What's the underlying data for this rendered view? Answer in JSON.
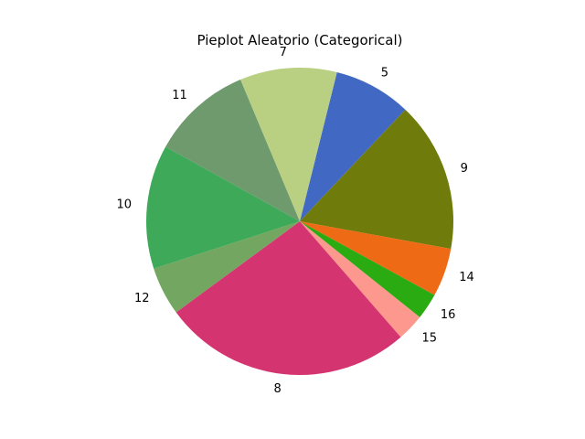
{
  "chart_data": {
    "type": "pie",
    "title": "Pieplot Aleatorio (Categorical)",
    "slices": [
      {
        "label": "5",
        "value": 8.0,
        "color": "#4169c4"
      },
      {
        "label": "9",
        "value": 15.5,
        "color": "#6f7b0a"
      },
      {
        "label": "14",
        "value": 5.0,
        "color": "#ee6a14"
      },
      {
        "label": "16",
        "value": 2.7,
        "color": "#2aab12"
      },
      {
        "label": "15",
        "value": 2.8,
        "color": "#fd988e"
      },
      {
        "label": "8",
        "value": 25.8,
        "color": "#d43571"
      },
      {
        "label": "12",
        "value": 5.0,
        "color": "#73a660"
      },
      {
        "label": "10",
        "value": 12.8,
        "color": "#3eaa59"
      },
      {
        "label": "11",
        "value": 10.4,
        "color": "#6f9a6d"
      },
      {
        "label": "7",
        "value": 10.0,
        "color": "#b9cf82"
      }
    ],
    "start_angle_deg": 76,
    "direction": "clockwise"
  }
}
